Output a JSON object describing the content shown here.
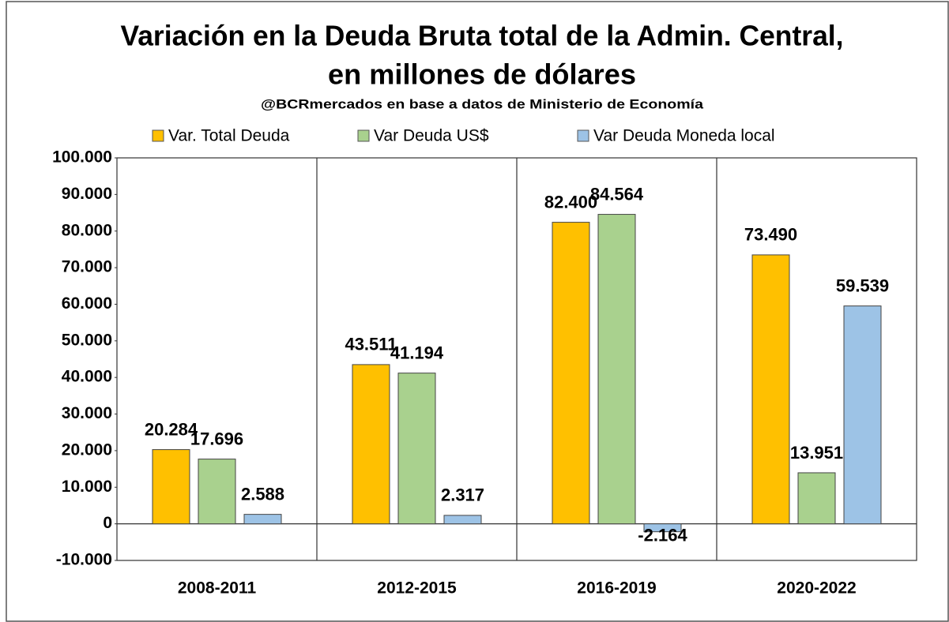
{
  "chart_data": {
    "type": "bar",
    "title": [
      "Variación en la Deuda Bruta total de la Admin. Central,",
      "en millones de dólares"
    ],
    "subtitle": "@BCRmercados en base a datos de Ministerio de Economía",
    "categories": [
      "2008-2011",
      "2012-2015",
      "2016-2019",
      "2020-2022"
    ],
    "series": [
      {
        "name": "Var. Total Deuda",
        "color": "#FFC000",
        "values": [
          20284,
          43511,
          82400,
          73490
        ],
        "value_labels": [
          "20.284",
          "43.511",
          "82.400",
          "73.490"
        ]
      },
      {
        "name": "Var Deuda US$",
        "color": "#A9D18E",
        "values": [
          17696,
          41194,
          84564,
          13951
        ],
        "value_labels": [
          "17.696",
          "41.194",
          "84.564",
          "13.951"
        ]
      },
      {
        "name": "Var Deuda Moneda local",
        "color": "#9DC3E6",
        "values": [
          2588,
          2317,
          -2164,
          59539
        ],
        "value_labels": [
          "2.588",
          "2.317",
          "-2.164",
          "59.539"
        ]
      }
    ],
    "ylim": [
      -10000,
      100000
    ],
    "yticks": [
      {
        "value": -10000,
        "label": "-10.000"
      },
      0,
      {
        "value": 10000,
        "label": "10.000"
      },
      {
        "value": 20000,
        "label": "20.000"
      },
      {
        "value": 30000,
        "label": "30.000"
      },
      {
        "value": 40000,
        "label": "40.000"
      },
      {
        "value": 50000,
        "label": "50.000"
      },
      {
        "value": 60000,
        "label": "60.000"
      },
      {
        "value": 70000,
        "label": "70.000"
      },
      {
        "value": 80000,
        "label": "80.000"
      },
      {
        "value": 90000,
        "label": "90.000"
      },
      {
        "value": 100000,
        "label": "100.000"
      }
    ],
    "legend": "top"
  }
}
